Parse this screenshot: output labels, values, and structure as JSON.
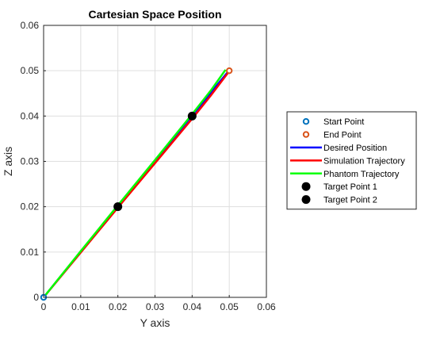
{
  "chart_data": {
    "type": "line",
    "title": "Cartesian Space Position",
    "xlabel": "Y axis",
    "ylabel": "Z axis",
    "xlim": [
      0,
      0.06
    ],
    "ylim": [
      0,
      0.06
    ],
    "xticks": [
      0,
      0.01,
      0.02,
      0.03,
      0.04,
      0.05,
      0.06
    ],
    "xtick_labels": [
      "0",
      "0.01",
      "0.02",
      "0.03",
      "0.04",
      "0.05",
      "0.06"
    ],
    "yticks": [
      0,
      0.01,
      0.02,
      0.03,
      0.04,
      0.05,
      0.06
    ],
    "ytick_labels": [
      "0",
      "0.01",
      "0.02",
      "0.03",
      "0.04",
      "0.05",
      "0.06"
    ],
    "grid": true,
    "legend_position": "right",
    "series": [
      {
        "name": "Start Point",
        "kind": "marker-ring",
        "color": "#0072BD",
        "x": [
          0
        ],
        "y": [
          0
        ]
      },
      {
        "name": "End Point",
        "kind": "marker-ring",
        "color": "#D95319",
        "x": [
          0.05
        ],
        "y": [
          0.05
        ]
      },
      {
        "name": "Desired Position",
        "kind": "line",
        "color": "#0000FF",
        "x": [
          0,
          0.01,
          0.02,
          0.03,
          0.04,
          0.05
        ],
        "y": [
          0,
          0.0101,
          0.0201,
          0.0301,
          0.0401,
          0.0501
        ]
      },
      {
        "name": "Simulation Trajectory",
        "kind": "line",
        "color": "#FF0000",
        "x": [
          0,
          0.01,
          0.02,
          0.03,
          0.04,
          0.045,
          0.05
        ],
        "y": [
          0,
          0.0099,
          0.0198,
          0.0296,
          0.0394,
          0.0445,
          0.0499
        ]
      },
      {
        "name": "Phantom Trajectory",
        "kind": "line",
        "color": "#00FF00",
        "x": [
          0,
          0.01,
          0.02,
          0.03,
          0.04,
          0.045,
          0.049
        ],
        "y": [
          0,
          0.0102,
          0.0203,
          0.0303,
          0.0404,
          0.0456,
          0.0502
        ]
      },
      {
        "name": "Target Point 1",
        "kind": "marker-dot",
        "color": "#000000",
        "x": [
          0.02
        ],
        "y": [
          0.02
        ]
      },
      {
        "name": "Target Point 2",
        "kind": "marker-dot",
        "color": "#000000",
        "x": [
          0.04
        ],
        "y": [
          0.04
        ]
      }
    ]
  }
}
